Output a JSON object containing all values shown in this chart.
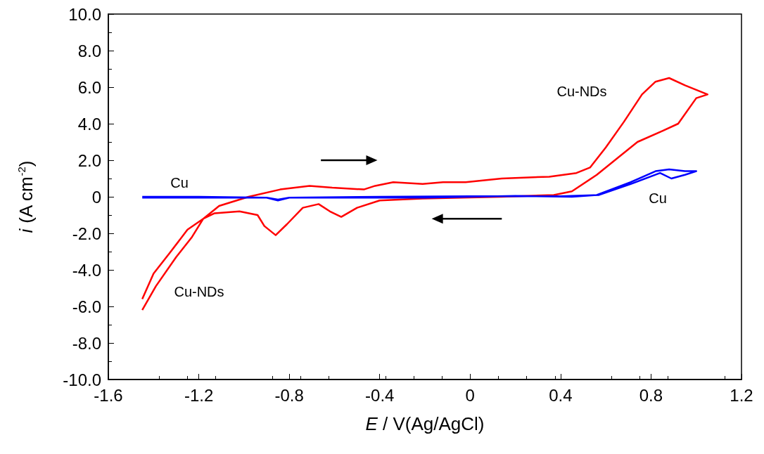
{
  "chart_data": {
    "type": "line",
    "xlabel": "E / V(Ag/AgCl)",
    "ylabel": "i (A cm$^{-2}$)",
    "xlim": [
      -1.6,
      1.2
    ],
    "xticks": [
      -1.6,
      -1.2,
      -0.8,
      -0.4,
      0,
      0.4,
      0.8,
      1.2
    ],
    "ylim": [
      -10,
      10
    ],
    "yticks": [
      {
        "value": -10,
        "label": "-10.0"
      },
      {
        "value": -8,
        "label": "-8.0"
      },
      {
        "value": -6,
        "label": "-6.0"
      },
      {
        "value": -4,
        "label": "-4.0"
      },
      {
        "value": -2,
        "label": "-2.0"
      },
      {
        "value": 0,
        "label": "0"
      },
      {
        "value": 2,
        "label": "2.0"
      },
      {
        "value": 4,
        "label": "4.0"
      },
      {
        "value": 6,
        "label": "6.0"
      },
      {
        "value": 8,
        "label": "8.0"
      },
      {
        "value": 10,
        "label": "10.0"
      }
    ],
    "grid": false,
    "marker": "none",
    "line_style": "solid",
    "series": [
      {
        "color": "#ff0000",
        "x": [
          -1.45,
          -1.39,
          -1.3,
          -1.23,
          -1.18,
          -1.11,
          -0.98,
          -0.84,
          -0.71,
          -0.61,
          -0.47,
          -0.42,
          -0.34,
          -0.21,
          -0.12,
          -0.02,
          0.14,
          0.35,
          0.47,
          0.53,
          0.6,
          0.68,
          0.76,
          0.82,
          0.88,
          0.95,
          1.05,
          1.0,
          0.92,
          0.85,
          0.74,
          0.66,
          0.56,
          0.45,
          0.37,
          0.14,
          -0.21,
          -0.4,
          -0.5,
          -0.57,
          -0.62,
          -0.67,
          -0.74,
          -0.81,
          -0.86,
          -0.91,
          -0.94,
          -1.02,
          -1.13,
          -1.18,
          -1.25,
          -1.33,
          -1.4,
          -1.45
        ],
        "values": [
          -6.2,
          -4.9,
          -3.3,
          -2.2,
          -1.2,
          -0.5,
          0.0,
          0.4,
          0.6,
          0.5,
          0.4,
          0.6,
          0.8,
          0.7,
          0.8,
          0.8,
          1.0,
          1.1,
          1.3,
          1.6,
          2.7,
          4.1,
          5.6,
          6.3,
          6.5,
          6.1,
          5.6,
          5.4,
          4.0,
          3.6,
          3.0,
          2.2,
          1.2,
          0.3,
          0.1,
          0.0,
          -0.1,
          -0.2,
          -0.6,
          -1.1,
          -0.8,
          -0.4,
          -0.6,
          -1.5,
          -2.1,
          -1.6,
          -1.0,
          -0.8,
          -0.9,
          -1.2,
          -1.8,
          -3.1,
          -4.2,
          -5.6
        ]
      },
      {
        "color": "#0000ff",
        "x": [
          -1.45,
          -1.0,
          -0.9,
          -0.85,
          -0.8,
          -0.6,
          -0.2,
          0.2,
          0.45,
          0.56,
          0.71,
          0.82,
          0.88,
          0.95,
          1.0,
          0.95,
          0.89,
          0.84,
          0.71,
          0.57,
          0.4,
          0.0,
          -0.4,
          -0.8,
          -0.85,
          -0.9,
          -1.2,
          -1.45
        ],
        "values": [
          -0.05,
          -0.05,
          -0.05,
          -0.2,
          -0.05,
          -0.05,
          -0.05,
          0.05,
          0.0,
          0.1,
          0.8,
          1.4,
          1.5,
          1.4,
          1.4,
          1.2,
          1.0,
          1.3,
          0.7,
          0.1,
          0.03,
          0.03,
          0.0,
          -0.05,
          -0.15,
          -0.05,
          0.0,
          0.0
        ]
      }
    ],
    "annotations": [
      "Cu-NDs",
      "Cu-NDs",
      "Cu",
      "Cu"
    ]
  }
}
